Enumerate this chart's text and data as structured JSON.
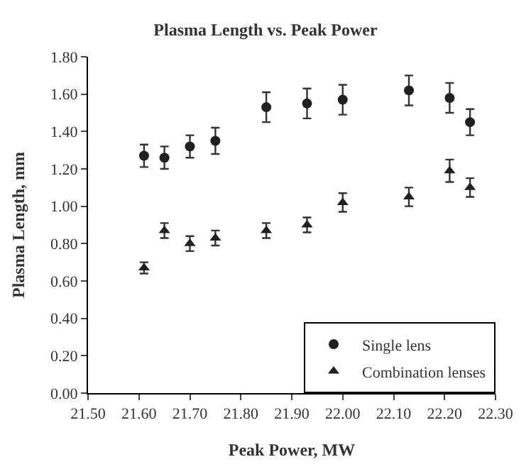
{
  "chart_data": {
    "type": "scatter",
    "title": "Plasma Length vs. Peak Power",
    "xlabel": "Peak Power, MW",
    "ylabel": "Plasma Length, mm",
    "x": [
      21.61,
      21.65,
      21.7,
      21.75,
      21.85,
      21.93,
      22.0,
      22.13,
      22.21,
      22.25
    ],
    "series": [
      {
        "name": "Single lens",
        "color": "#231f20",
        "marker": "circle",
        "values": [
          1.27,
          1.26,
          1.32,
          1.35,
          1.53,
          1.55,
          1.57,
          1.62,
          1.58,
          1.45
        ],
        "errors": [
          0.06,
          0.06,
          0.06,
          0.07,
          0.08,
          0.08,
          0.08,
          0.08,
          0.08,
          0.07
        ]
      },
      {
        "name": "Combination lenses",
        "color": "#231f20",
        "marker": "triangle",
        "values": [
          0.67,
          0.87,
          0.8,
          0.83,
          0.87,
          0.9,
          1.02,
          1.05,
          1.19,
          1.1
        ],
        "errors": [
          0.03,
          0.04,
          0.04,
          0.04,
          0.04,
          0.04,
          0.05,
          0.05,
          0.06,
          0.05
        ]
      }
    ],
    "xlim": [
      21.5,
      22.3
    ],
    "xticks": [
      {
        "value": 21.5,
        "label": "21.50"
      },
      {
        "value": 21.6,
        "label": "21.60"
      },
      {
        "value": 21.7,
        "label": "21.70"
      },
      {
        "value": 21.8,
        "label": "21.80"
      },
      {
        "value": 21.9,
        "label": "21.90"
      },
      {
        "value": 22.0,
        "label": "22.00"
      },
      {
        "value": 22.1,
        "label": "22.10"
      },
      {
        "value": 22.2,
        "label": "22.20"
      },
      {
        "value": 22.3,
        "label": "22.30"
      }
    ],
    "ylim": [
      0,
      1.8
    ],
    "yticks": [
      {
        "value": 0,
        "label": "0.00"
      },
      {
        "value": 0.2,
        "label": "0.20"
      },
      {
        "value": 0.4,
        "label": "0.40"
      },
      {
        "value": 0.6,
        "label": "0.60"
      },
      {
        "value": 0.8,
        "label": "0.80"
      },
      {
        "value": 1.0,
        "label": "1.00"
      },
      {
        "value": 1.2,
        "label": "1.20"
      },
      {
        "value": 1.4,
        "label": "1.40"
      },
      {
        "value": 1.6,
        "label": "1.60"
      },
      {
        "value": 1.8,
        "label": "1.80"
      }
    ],
    "legend": "bottom right"
  }
}
